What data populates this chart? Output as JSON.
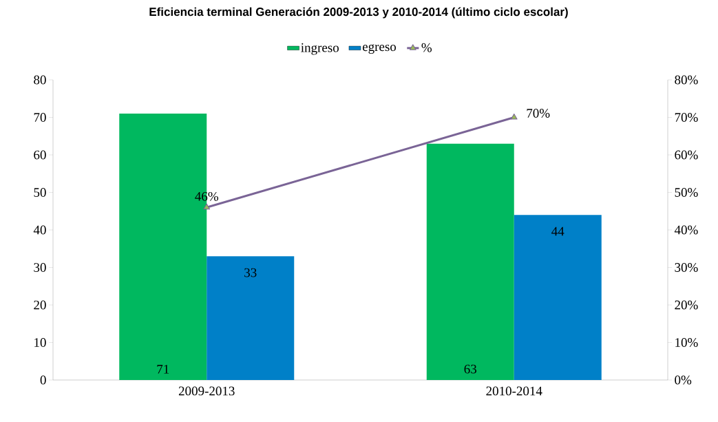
{
  "chart_data": {
    "type": "bar",
    "title": "Eficiencia terminal Generación 2009-2013 y 2010-2014 (último ciclo escolar)",
    "categories": [
      "2009-2013",
      "2010-2014"
    ],
    "series": [
      {
        "name": "ingreso",
        "color": "#00b85f",
        "values": [
          71,
          63
        ],
        "value_labels": [
          "71",
          "63"
        ]
      },
      {
        "name": "egreso",
        "color": "#0080c8",
        "values": [
          33,
          44
        ],
        "value_labels": [
          "33",
          "44"
        ]
      },
      {
        "name": "%",
        "type": "line",
        "axis": "y2",
        "color": "#7a6496",
        "marker": "triangle",
        "values": [
          46,
          70
        ],
        "value_labels": [
          "46%",
          "70%"
        ]
      }
    ],
    "ylim": [
      0,
      80
    ],
    "yticks": [
      0,
      10,
      20,
      30,
      40,
      50,
      60,
      70,
      80
    ],
    "y2lim": [
      0,
      80
    ],
    "y2ticks": [
      {
        "value": 0,
        "label": "0%"
      },
      {
        "value": 10,
        "label": "10%"
      },
      {
        "value": 20,
        "label": "20%"
      },
      {
        "value": 30,
        "label": "30%"
      },
      {
        "value": 40,
        "label": "40%"
      },
      {
        "value": 50,
        "label": "50%"
      },
      {
        "value": 60,
        "label": "60%"
      },
      {
        "value": 70,
        "label": "70%"
      },
      {
        "value": 80,
        "label": "80%"
      }
    ],
    "grid": false,
    "legend": "top"
  }
}
